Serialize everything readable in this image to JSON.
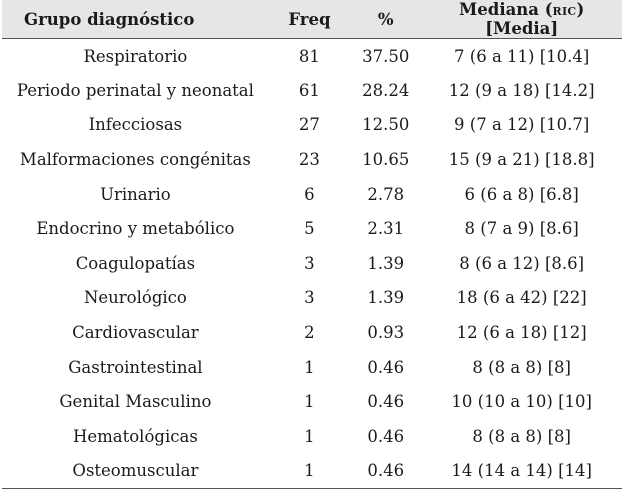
{
  "table": {
    "headers": {
      "grupo": "Grupo diagnóstico",
      "freq": "Freq",
      "pct": "%",
      "mediana_prefix": "Mediana (",
      "mediana_ric": "RIC",
      "mediana_suffix": ") [Media]"
    },
    "rows": [
      {
        "grupo": "Respiratorio",
        "freq": "81",
        "pct": "37.50",
        "mediana": "7 (6 a 11) [10.4]"
      },
      {
        "grupo": "Periodo perinatal y neonatal",
        "freq": "61",
        "pct": "28.24",
        "mediana": "12 (9 a 18) [14.2]"
      },
      {
        "grupo": "Infecciosas",
        "freq": "27",
        "pct": "12.50",
        "mediana": "9 (7 a 12) [10.7]"
      },
      {
        "grupo": "Malformaciones congénitas",
        "freq": "23",
        "pct": "10.65",
        "mediana": "15 (9 a 21) [18.8]"
      },
      {
        "grupo": "Urinario",
        "freq": "6",
        "pct": "2.78",
        "mediana": "6 (6 a 8) [6.8]"
      },
      {
        "grupo": "Endocrino y metabólico",
        "freq": "5",
        "pct": "2.31",
        "mediana": "8 (7 a 9) [8.6]"
      },
      {
        "grupo": "Coagulopatías",
        "freq": "3",
        "pct": "1.39",
        "mediana": "8 (6 a 12) [8.6]"
      },
      {
        "grupo": "Neurológico",
        "freq": "3",
        "pct": "1.39",
        "mediana": "18 (6 a 42) [22]"
      },
      {
        "grupo": "Cardiovascular",
        "freq": "2",
        "pct": "0.93",
        "mediana": "12 (6 a 18) [12]"
      },
      {
        "grupo": "Gastrointestinal",
        "freq": "1",
        "pct": "0.46",
        "mediana": "8 (8 a 8) [8]"
      },
      {
        "grupo": "Genital Masculino",
        "freq": "1",
        "pct": "0.46",
        "mediana": "10 (10 a 10) [10]"
      },
      {
        "grupo": "Hematológicas",
        "freq": "1",
        "pct": "0.46",
        "mediana": "8 (8 a 8) [8]"
      },
      {
        "grupo": "Osteomuscular",
        "freq": "1",
        "pct": "0.46",
        "mediana": "14 (14 a 14) [14]"
      }
    ]
  }
}
